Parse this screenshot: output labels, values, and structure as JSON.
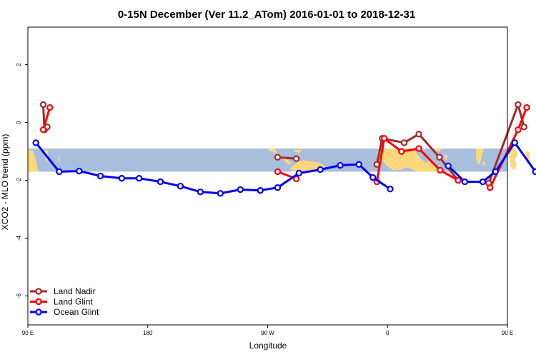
{
  "chart_data": {
    "type": "line",
    "title": "0-15N December (Ver 11.2_ATom)   2016-01-01 to 2018-12-31",
    "xlabel": "Longitude",
    "ylabel": "XCO2 - MLO trend (ppm)",
    "xlim": [
      90,
      450
    ],
    "ylim": [
      -7,
      3.3
    ],
    "x_ticks": [
      {
        "value": 90,
        "label": "90 E"
      },
      {
        "value": 180,
        "label": "180"
      },
      {
        "value": 270,
        "label": "90 W"
      },
      {
        "value": 360,
        "label": "0"
      },
      {
        "value": 450,
        "label": "90 E"
      },
      {
        "value": 540,
        "label": "180"
      }
    ],
    "y_ticks": [
      {
        "value": 2,
        "label": "2"
      },
      {
        "value": 0,
        "label": "0"
      },
      {
        "value": -2,
        "label": "-2"
      },
      {
        "value": -4,
        "label": "-4"
      },
      {
        "value": -6,
        "label": "-6"
      }
    ],
    "latitude_band_y": [
      -1.7,
      -0.9
    ],
    "colors": {
      "band": "#a8bedd",
      "land": "#fdd77b"
    },
    "legend_position": "bottom-left",
    "series": [
      {
        "name": "Land Nadir",
        "color": "#a52a2a",
        "segments": [
          {
            "x": [
              101.5,
              102.5,
              104.5
            ],
            "y": [
              0.62,
              -0.25,
              -0.15
            ]
          },
          {
            "x": [
              277.5,
              291.5
            ],
            "y": [
              -1.2,
              -1.25
            ]
          },
          {
            "x": [
              352.0,
              356.0,
              372.5,
              383.5,
              399.0,
              413.0
            ],
            "y": [
              -1.45,
              -0.55,
              -0.7,
              -0.4,
              -1.2,
              -2.0
            ]
          },
          {
            "x": [
              436.0,
              458.0,
              462.5
            ],
            "y": [
              -2.1,
              0.62,
              -0.15
            ]
          }
        ]
      },
      {
        "name": "Land Glint",
        "color": "#ff0000",
        "segments": [
          {
            "x": [
              101.5,
              106.5
            ],
            "y": [
              -0.25,
              0.52
            ]
          },
          {
            "x": [
              277.5,
              291.5
            ],
            "y": [
              -1.7,
              -1.95
            ]
          },
          {
            "x": [
              352.0,
              357.5,
              370.5,
              383.5,
              399.5,
              413.0
            ],
            "y": [
              -2.05,
              -0.55,
              -1.0,
              -0.9,
              -1.65,
              -2.0
            ]
          },
          {
            "x": [
              437.0,
              458.0,
              464.5
            ],
            "y": [
              -2.25,
              -0.25,
              0.52
            ]
          }
        ]
      },
      {
        "name": "Ocean Glint",
        "color": "#0000ff",
        "segments": [
          {
            "x": [
              96.0,
              113.5,
              128.5,
              144.5,
              160.5,
              173.5,
              189.5,
              204.5,
              219.5,
              234.5,
              249.5,
              264.5,
              277.5,
              293.5,
              309.5,
              324.5,
              338.5,
              349.0,
              362.0
            ],
            "y": [
              -0.7,
              -1.7,
              -1.68,
              -1.85,
              -1.93,
              -1.93,
              -2.05,
              -2.2,
              -2.4,
              -2.45,
              -2.32,
              -2.35,
              -2.25,
              -1.75,
              -1.63,
              -1.48,
              -1.45,
              -1.9,
              -2.3
            ]
          },
          {
            "x": [
              405.5,
              418.0,
              431.5,
              441.0,
              455.5,
              471.0,
              486.5,
              503.5,
              518.5,
              532.5
            ],
            "y": [
              -1.5,
              -2.05,
              -2.05,
              -1.7,
              -0.7,
              -1.7,
              -1.68,
              -1.85,
              -1.93,
              -1.93
            ]
          }
        ]
      }
    ]
  }
}
